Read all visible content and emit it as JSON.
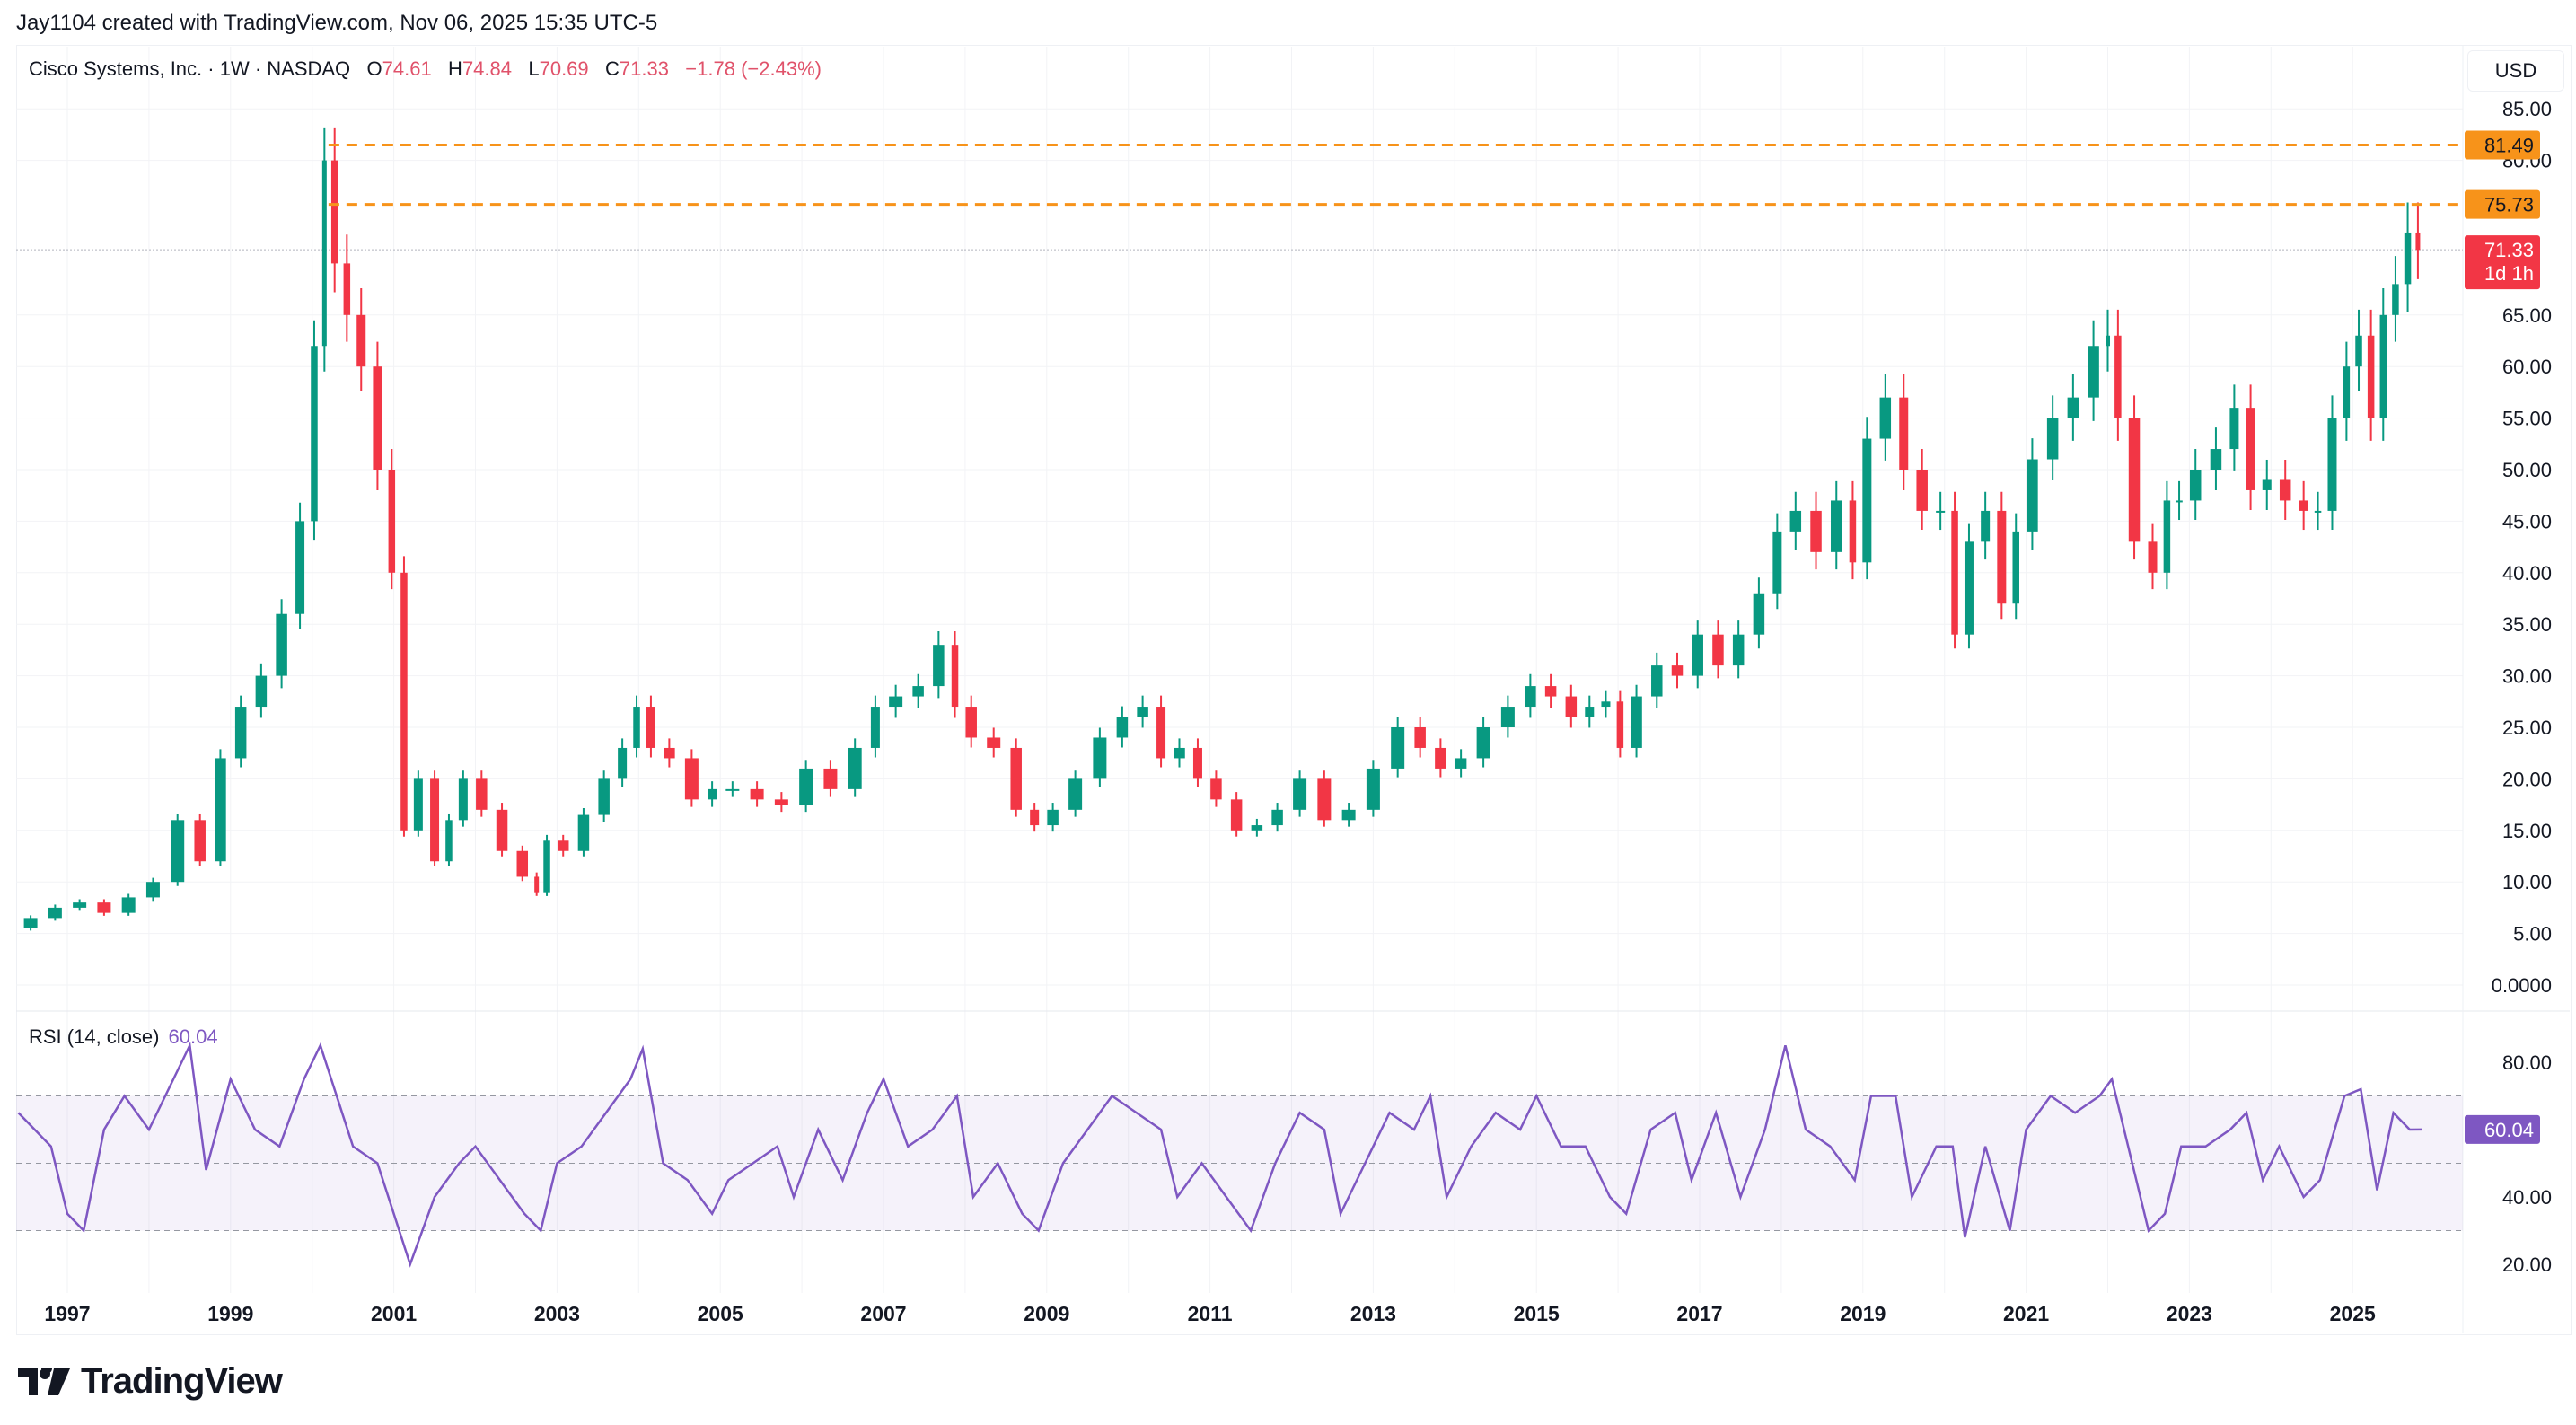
{
  "credit": "Jay1104 created with TradingView.com, Nov 06, 2025 15:35 UTC-5",
  "legend": {
    "symbol": "Cisco Systems, Inc. · 1W · NASDAQ",
    "o_label": "O",
    "o": "74.61",
    "h_label": "H",
    "h": "74.84",
    "l_label": "L",
    "l": "70.69",
    "c_label": "C",
    "c": "71.33",
    "change": "−1.78 (−2.43%)"
  },
  "currency": "USD",
  "rsi_label": "RSI (14, close)",
  "rsi_value": "60.04",
  "logo_text": "TradingView",
  "colors": {
    "up": "#089981",
    "down": "#f23645",
    "level": "#f7931a",
    "rsi": "#7e57c2",
    "price_badge": "#f23645"
  },
  "chart_data": [
    {
      "type": "candlestick",
      "title": "Cisco Systems, Inc. · 1W · NASDAQ",
      "ylim": [
        0,
        85
      ],
      "price_ticks": [
        "85.00",
        "80.00",
        "65.00",
        "60.00",
        "55.00",
        "50.00",
        "45.00",
        "40.00",
        "35.00",
        "30.00",
        "25.00",
        "20.00",
        "15.00",
        "10.00",
        "5.00",
        "0.0000"
      ],
      "price_tick_values": [
        85,
        80,
        65,
        60,
        55,
        50,
        45,
        40,
        35,
        30,
        25,
        20,
        15,
        10,
        5,
        0
      ],
      "x_ticks": [
        "1997",
        "1999",
        "2001",
        "2003",
        "2005",
        "2007",
        "2009",
        "2011",
        "2013",
        "2015",
        "2017",
        "2019",
        "2021",
        "2023",
        "2025"
      ],
      "levels": [
        {
          "value": 81.49,
          "label": "81.49",
          "from": 2000.2
        },
        {
          "value": 75.73,
          "label": "75.73",
          "from": 2000.2
        }
      ],
      "last_price": {
        "value": 71.33,
        "label": "71.33",
        "countdown": "1d 1h"
      },
      "t": [
        1996.4,
        1996.7,
        1997.0,
        1997.3,
        1997.6,
        1997.9,
        1998.2,
        1998.5,
        1998.75,
        1999.0,
        1999.25,
        1999.5,
        1999.75,
        1999.95,
        2000.1,
        2000.2,
        2000.35,
        2000.5,
        2000.7,
        2000.9,
        2001.05,
        2001.2,
        2001.4,
        2001.6,
        2001.75,
        2001.95,
        2002.2,
        2002.45,
        2002.7,
        2002.8,
        2002.95,
        2003.2,
        2003.45,
        2003.7,
        2003.9,
        2004.05,
        2004.25,
        2004.5,
        2004.8,
        2005.0,
        2005.3,
        2005.6,
        2005.9,
        2006.2,
        2006.5,
        2006.8,
        2007.0,
        2007.3,
        2007.55,
        2007.8,
        2007.95,
        2008.2,
        2008.5,
        2008.75,
        2008.95,
        2009.2,
        2009.5,
        2009.8,
        2010.05,
        2010.3,
        2010.5,
        2010.75,
        2010.95,
        2011.2,
        2011.45,
        2011.7,
        2011.95,
        2012.25,
        2012.55,
        2012.85,
        2013.15,
        2013.45,
        2013.7,
        2013.95,
        2014.2,
        2014.5,
        2014.8,
        2015.05,
        2015.3,
        2015.55,
        2015.75,
        2015.95,
        2016.1,
        2016.35,
        2016.6,
        2016.85,
        2017.1,
        2017.35,
        2017.6,
        2017.85,
        2018.05,
        2018.3,
        2018.55,
        2018.8,
        2018.95,
        2019.15,
        2019.4,
        2019.6,
        2019.85,
        2020.05,
        2020.2,
        2020.4,
        2020.6,
        2020.8,
        2020.95,
        2021.2,
        2021.45,
        2021.7,
        2021.95,
        2022.05,
        2022.2,
        2022.45,
        2022.65,
        2022.8,
        2022.95,
        2023.2,
        2023.45,
        2023.65,
        2023.85,
        2024.05,
        2024.3,
        2024.5,
        2024.65,
        2024.85,
        2025.0,
        2025.15,
        2025.3,
        2025.45,
        2025.6,
        2025.75,
        2025.85
      ],
      "close": [
        5.5,
        6.5,
        7.5,
        8.0,
        7.0,
        8.5,
        10,
        16,
        12,
        22,
        27,
        30,
        36,
        45,
        62,
        80,
        70,
        65,
        60,
        50,
        40,
        15,
        20,
        12,
        16,
        20,
        17,
        13,
        10.5,
        9,
        14,
        13,
        16.5,
        20,
        23,
        27,
        23,
        22,
        18,
        19,
        19,
        18,
        17.5,
        21,
        19,
        23,
        27,
        28,
        29,
        33,
        27,
        24,
        23,
        17,
        15.5,
        17,
        20,
        24,
        26,
        27,
        22,
        23,
        20,
        18,
        15,
        15.5,
        17,
        20,
        16,
        17,
        21,
        25,
        23,
        21,
        22,
        25,
        27,
        29,
        28,
        26,
        27,
        27.5,
        23,
        28,
        31,
        30,
        34,
        31,
        34,
        38,
        44,
        46,
        42,
        47,
        41,
        53,
        57,
        50,
        46,
        46,
        34,
        43,
        46,
        37,
        44,
        51,
        55,
        57,
        62,
        63,
        55,
        43,
        40,
        47,
        47,
        50,
        52,
        56,
        48,
        49,
        47,
        46,
        46,
        55,
        60,
        63,
        55,
        65,
        68,
        73,
        71.33
      ]
    },
    {
      "type": "line",
      "name": "RSI (14, close)",
      "ylim": [
        15,
        90
      ],
      "bands": {
        "upper": 70,
        "middle": 50,
        "lower": 30
      },
      "y_ticks": [
        "80.00",
        "40.00",
        "20.00"
      ],
      "y_tick_values": [
        80,
        40,
        20
      ],
      "t": [
        1996.4,
        1996.6,
        1996.8,
        1997.0,
        1997.2,
        1997.45,
        1997.7,
        1998.0,
        1998.3,
        1998.5,
        1998.7,
        1999.0,
        1999.3,
        1999.6,
        1999.9,
        2000.1,
        2000.3,
        2000.5,
        2000.8,
        2001.0,
        2001.2,
        2001.5,
        2001.8,
        2002.0,
        2002.3,
        2002.6,
        2002.8,
        2003.0,
        2003.3,
        2003.6,
        2003.9,
        2004.05,
        2004.3,
        2004.6,
        2004.9,
        2005.1,
        2005.4,
        2005.7,
        2005.9,
        2006.2,
        2006.5,
        2006.8,
        2007.0,
        2007.3,
        2007.6,
        2007.9,
        2008.1,
        2008.4,
        2008.7,
        2008.9,
        2009.2,
        2009.5,
        2009.8,
        2010.1,
        2010.4,
        2010.6,
        2010.9,
        2011.2,
        2011.5,
        2011.8,
        2012.1,
        2012.4,
        2012.6,
        2012.9,
        2013.2,
        2013.5,
        2013.7,
        2013.9,
        2014.2,
        2014.5,
        2014.8,
        2015.0,
        2015.3,
        2015.6,
        2015.9,
        2016.1,
        2016.4,
        2016.7,
        2016.9,
        2017.2,
        2017.5,
        2017.8,
        2018.05,
        2018.3,
        2018.6,
        2018.9,
        2019.1,
        2019.4,
        2019.6,
        2019.9,
        2020.1,
        2020.25,
        2020.5,
        2020.8,
        2021.0,
        2021.3,
        2021.6,
        2021.9,
        2022.05,
        2022.3,
        2022.5,
        2022.7,
        2022.9,
        2023.2,
        2023.5,
        2023.7,
        2023.9,
        2024.1,
        2024.4,
        2024.6,
        2024.9,
        2025.1,
        2025.3,
        2025.5,
        2025.7,
        2025.85
      ],
      "values": [
        65,
        60,
        55,
        35,
        30,
        60,
        70,
        60,
        75,
        85,
        48,
        75,
        60,
        55,
        75,
        85,
        70,
        55,
        50,
        35,
        20,
        40,
        50,
        55,
        45,
        35,
        30,
        50,
        55,
        65,
        75,
        84,
        50,
        45,
        35,
        45,
        50,
        55,
        40,
        60,
        45,
        65,
        75,
        55,
        60,
        70,
        40,
        50,
        35,
        30,
        50,
        60,
        70,
        65,
        60,
        40,
        50,
        40,
        30,
        50,
        65,
        60,
        35,
        50,
        65,
        60,
        70,
        40,
        55,
        65,
        60,
        70,
        55,
        55,
        40,
        35,
        60,
        65,
        45,
        65,
        40,
        60,
        85,
        60,
        55,
        45,
        70,
        70,
        40,
        55,
        55,
        28,
        55,
        30,
        60,
        70,
        65,
        70,
        75,
        50,
        30,
        35,
        55,
        55,
        60,
        65,
        45,
        55,
        40,
        45,
        70,
        72,
        42,
        65,
        60,
        60.04
      ]
    }
  ]
}
